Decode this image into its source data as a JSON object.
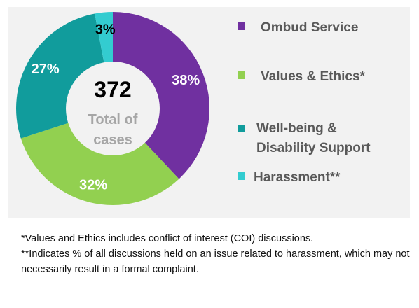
{
  "chart_data": {
    "type": "pie",
    "style": "donut",
    "categories": [
      "Ombud Service",
      "Values & Ethics*",
      "Well-being & Disability Support",
      "Harassment**"
    ],
    "values": [
      38,
      32,
      27,
      3
    ],
    "value_labels": [
      "38%",
      "32%",
      "27%",
      "3%"
    ],
    "colors": [
      "#7030a0",
      "#92d050",
      "#119c9c",
      "#33ccd0"
    ],
    "label_colors": [
      "#ffffff",
      "#ffffff",
      "#ffffff",
      "#000000"
    ],
    "center": {
      "total": "372",
      "caption_line1": "Total of",
      "caption_line2": "cases"
    },
    "legend": {
      "position": "right",
      "items": [
        {
          "label": "Ombud Service",
          "color": "#7030a0"
        },
        {
          "label": "Values & Ethics*",
          "color": "#92d050"
        },
        {
          "label": "Well-being & Disability Support",
          "color": "#119c9c"
        },
        {
          "label": "Harassment**",
          "color": "#33ccd0"
        }
      ]
    },
    "background": "#f2f2f2"
  },
  "footnotes": [
    "*Values and Ethics includes conflict of interest (COI) discussions.",
    "**Indicates % of all discussions held on an issue related to harassment, which may not necessarily result in a formal complaint."
  ]
}
